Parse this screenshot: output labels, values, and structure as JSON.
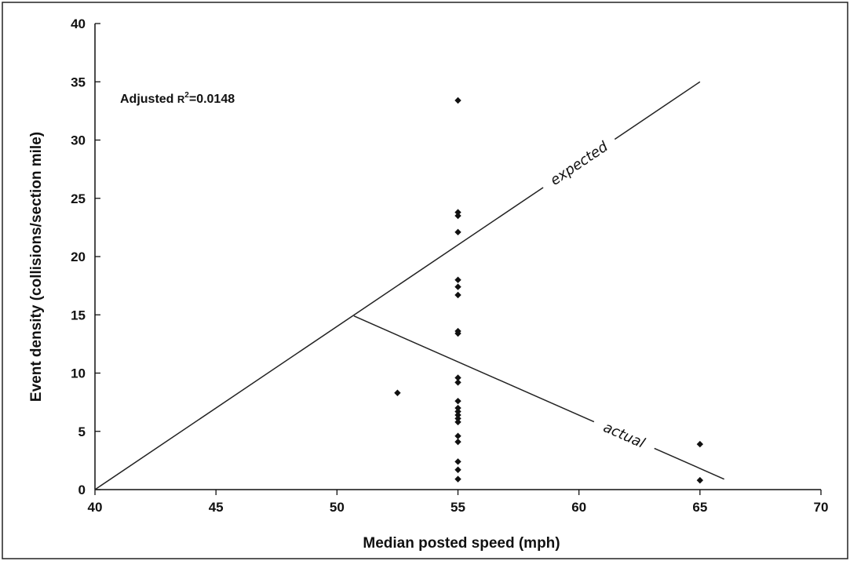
{
  "chart_data": {
    "type": "scatter",
    "xlabel": "Median posted speed (mph)",
    "ylabel": "Event density (collisions/section mile)",
    "xlim": [
      40,
      70
    ],
    "ylim": [
      0,
      40
    ],
    "xticks": [
      40,
      45,
      50,
      55,
      60,
      65,
      70
    ],
    "yticks": [
      0,
      5,
      10,
      15,
      20,
      25,
      30,
      35,
      40
    ],
    "grid": false,
    "annotation": {
      "prefix": "Adjusted ",
      "r": "R",
      "sup": "2",
      "value": "=0.0148"
    },
    "points": [
      {
        "x": 52.5,
        "y": 8.3
      },
      {
        "x": 55,
        "y": 33.4
      },
      {
        "x": 55,
        "y": 23.8
      },
      {
        "x": 55,
        "y": 23.5
      },
      {
        "x": 55,
        "y": 22.1
      },
      {
        "x": 55,
        "y": 18.0
      },
      {
        "x": 55,
        "y": 17.4
      },
      {
        "x": 55,
        "y": 16.7
      },
      {
        "x": 55,
        "y": 13.6
      },
      {
        "x": 55,
        "y": 13.4
      },
      {
        "x": 55,
        "y": 9.6
      },
      {
        "x": 55,
        "y": 9.2
      },
      {
        "x": 55,
        "y": 7.6
      },
      {
        "x": 55,
        "y": 7.0
      },
      {
        "x": 55,
        "y": 6.7
      },
      {
        "x": 55,
        "y": 6.4
      },
      {
        "x": 55,
        "y": 6.1
      },
      {
        "x": 55,
        "y": 5.8
      },
      {
        "x": 55,
        "y": 4.6
      },
      {
        "x": 55,
        "y": 4.1
      },
      {
        "x": 55,
        "y": 2.4
      },
      {
        "x": 55,
        "y": 1.7
      },
      {
        "x": 55,
        "y": 0.9
      },
      {
        "x": 65,
        "y": 3.9
      },
      {
        "x": 65,
        "y": 0.8
      }
    ],
    "lines": [
      {
        "name": "expected",
        "points": [
          [
            40,
            0
          ],
          [
            65,
            35
          ]
        ]
      },
      {
        "name": "actual",
        "points": [
          [
            50.7,
            14.9
          ],
          [
            66,
            0.9
          ]
        ]
      }
    ]
  }
}
